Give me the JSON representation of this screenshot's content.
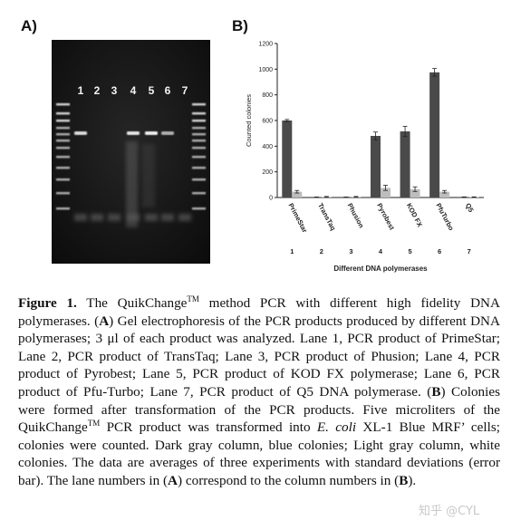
{
  "panel_a": {
    "label": "A)",
    "lane_labels": [
      "1",
      "2",
      "3",
      "4",
      "5",
      "6",
      "7"
    ]
  },
  "panel_b": {
    "label": "B)"
  },
  "chart_data": {
    "type": "bar",
    "categories": [
      "PrimeStar",
      "TransTaq",
      "Phusion",
      "Pyrobest",
      "KOD FX",
      "PfuTurbo",
      "Q5"
    ],
    "column_numbers": [
      "1",
      "2",
      "3",
      "4",
      "5",
      "6",
      "7"
    ],
    "series": [
      {
        "values": [
          600,
          2,
          2,
          480,
          515,
          975,
          3
        ],
        "errors": [
          8,
          2,
          2,
          30,
          40,
          30,
          2
        ],
        "color": "#4a4a4a"
      },
      {
        "values": [
          45,
          5,
          5,
          75,
          65,
          45,
          3
        ],
        "errors": [
          10,
          3,
          3,
          20,
          18,
          10,
          2
        ],
        "color": "#bdbdbd"
      }
    ],
    "xlabel": "Different DNA polymerases",
    "ylabel": "Counted colonies",
    "ylim": [
      0,
      1200
    ],
    "yticks": [
      0,
      200,
      400,
      600,
      800,
      1000,
      1200
    ],
    "grid": false
  },
  "caption": {
    "fig_label": "Figure 1.",
    "part1": " The QuikChange",
    "tm1": "TM",
    "part2": " method PCR with different high fidelity DNA polymerases. (",
    "a1": "A",
    "part3": ") Gel electrophoresis of the PCR products produced by different DNA polymerases; 3 μl of each product was analyzed. Lane 1, PCR product of PrimeStar; Lane 2, PCR product of TransTaq; Lane 3, PCR product of Phusion; Lane 4, PCR product of Pyrobest; Lane 5, PCR product of KOD FX polymerase; Lane 6, PCR product of Pfu-Turbo; Lane 7, PCR product of Q5 DNA polymerase. (",
    "b1": "B",
    "part4": ") Colonies were formed after transformation of the PCR products. Five microliters of the QuikChange",
    "tm2": "TM",
    "part5": " PCR product was transformed into ",
    "ecoli": "E. coli",
    "part6": " XL-1 Blue MRF’ cells; colonies were counted. Dark gray column, blue colonies; Light gray column, white colonies. The data are averages of three experiments with standard deviations (error bar). The lane numbers in (",
    "a2": "A",
    "part7": ") correspond to the column numbers in (",
    "b2": "B",
    "part8": ")."
  },
  "watermark": "知乎 @CYL"
}
